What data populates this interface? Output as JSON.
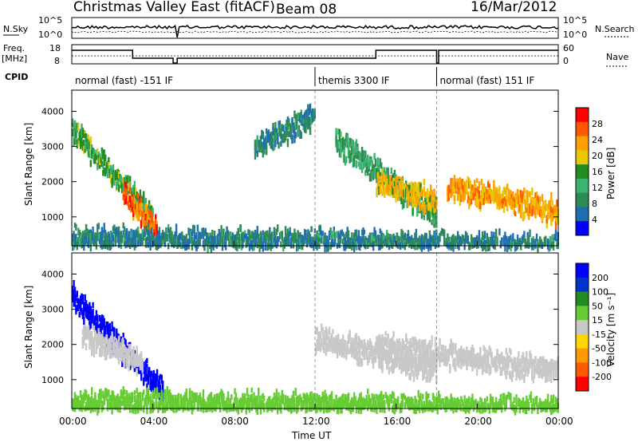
{
  "header": {
    "title": "Christmas Valley East (fitACF)",
    "beam": "Beam 08",
    "date": "16/Mar/2012"
  },
  "top_panels": {
    "nsky_label": "N.Sky",
    "nsearch_label": "N.Search",
    "noise_ticks": [
      "10^5",
      "10^0"
    ],
    "freq_label_1": "Freq.",
    "freq_label_2": "[MHz]",
    "freq_ticks": [
      "18",
      "8"
    ],
    "nave_label": "Nave",
    "nave_ticks": [
      "60",
      "0"
    ],
    "cpid_label": "CPID",
    "cpid_segments": [
      {
        "label": "normal (fast) -151 IF",
        "start_h": 0,
        "end_h": 12
      },
      {
        "label": "themis 3300 IF",
        "start_h": 12,
        "end_h": 18
      },
      {
        "label": "normal (fast) 151 IF",
        "start_h": 18,
        "end_h": 24
      }
    ]
  },
  "power_panel": {
    "ylabel": "Slant Range [km]",
    "colorbar_label": "Power [dB]",
    "colorbar_ticks": [
      "28",
      "24",
      "20",
      "16",
      "12",
      "8",
      "4"
    ],
    "colorbar_colors": [
      "#ff0000",
      "#ff5a00",
      "#ffa000",
      "#e8c800",
      "#228b22",
      "#3cb371",
      "#2e8b57",
      "#1e6fb0",
      "#0000ff"
    ]
  },
  "velocity_panel": {
    "ylabel": "Slant Range [km]",
    "colorbar_label": "Velocity [m s⁻¹]",
    "colorbar_ticks": [
      "200",
      "100",
      "50",
      "15",
      "-15",
      "-50",
      "-100",
      "-200"
    ],
    "colorbar_colors": [
      "#0000ff",
      "#0033cc",
      "#228b22",
      "#66cc33",
      "#c8c8c8",
      "#ffd700",
      "#ff9900",
      "#ff5a00",
      "#ff0000"
    ]
  },
  "x_axis": {
    "label": "Time UT",
    "ticks": [
      "00:00",
      "04:00",
      "08:00",
      "12:00",
      "16:00",
      "20:00",
      "00:00"
    ]
  },
  "y_axis_ticks": [
    "4000",
    "3000",
    "2000",
    "1000"
  ],
  "chart_data": [
    {
      "type": "heatmap",
      "title": "Christmas Valley East (fitACF) Beam 08 16/Mar/2012",
      "xlabel": "Time UT",
      "ylabel": "Slant Range [km]",
      "xlim": [
        0,
        24
      ],
      "ylim": [
        180,
        4600
      ],
      "colorbar": "Power [dB]",
      "clim": [
        0,
        30
      ],
      "regions": [
        {
          "t_start": 0.0,
          "t_end": 4.0,
          "range_start": 3500,
          "range_end": 1000,
          "value": 14
        },
        {
          "t_start": 2.5,
          "t_end": 4.2,
          "range_start": 1700,
          "range_end": 600,
          "value": 26
        },
        {
          "t_start": 9.0,
          "t_end": 12.0,
          "range_start": 3000,
          "range_end": 3900,
          "value": 6
        },
        {
          "t_start": 13.0,
          "t_end": 18.0,
          "range_start": 3200,
          "range_end": 1000,
          "value": 10
        },
        {
          "t_start": 15.0,
          "t_end": 18.0,
          "range_start": 2000,
          "range_end": 1500,
          "value": 20
        },
        {
          "t_start": 18.5,
          "t_end": 24.0,
          "range_start": 1900,
          "range_end": 1200,
          "value": 22
        },
        {
          "t_start": 0.0,
          "t_end": 24.0,
          "range_start": 400,
          "range_end": 200,
          "value": 6
        }
      ]
    },
    {
      "type": "heatmap",
      "title": "",
      "xlabel": "Time UT",
      "ylabel": "Slant Range [km]",
      "xlim": [
        0,
        24
      ],
      "ylim": [
        180,
        4600
      ],
      "colorbar": "Velocity [m s⁻¹]",
      "clim": [
        -200,
        200
      ],
      "regions": [
        {
          "t_start": 0.0,
          "t_end": 4.5,
          "range_start": 3400,
          "range_end": 700,
          "value": 220
        },
        {
          "t_start": 0.5,
          "t_end": 3.5,
          "range_start": 2300,
          "range_end": 1500,
          "value": 0
        },
        {
          "t_start": 12.0,
          "t_end": 18.0,
          "range_start": 2200,
          "range_end": 1300,
          "value": 20
        },
        {
          "t_start": 15.0,
          "t_end": 24.0,
          "range_start": 2000,
          "range_end": 1300,
          "value": 0
        },
        {
          "t_start": 0.0,
          "t_end": 24.0,
          "range_start": 400,
          "range_end": 200,
          "value": 40
        }
      ]
    }
  ]
}
